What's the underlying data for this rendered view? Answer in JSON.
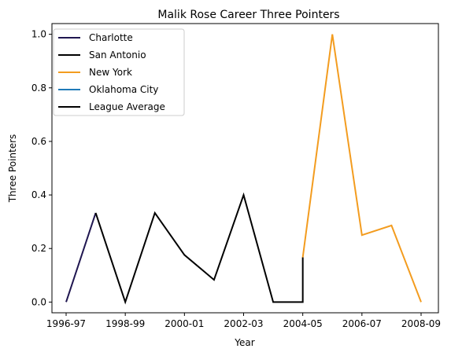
{
  "chart_data": {
    "type": "line",
    "title": "Malik Rose Career Three Pointers",
    "xlabel": "Year",
    "ylabel": "Three Pointers",
    "x_categories": [
      "1996-97",
      "1997-98",
      "1998-99",
      "1999-00",
      "2000-01",
      "2001-02",
      "2002-03",
      "2003-04",
      "2004-05",
      "2005-06",
      "2006-07",
      "2007-08",
      "2008-09"
    ],
    "x_tick_labels": [
      "1996-97",
      "1998-99",
      "2000-01",
      "2002-03",
      "2004-05",
      "2006-07",
      "2008-09"
    ],
    "y_ticks": [
      "0.0",
      "0.2",
      "0.4",
      "0.6",
      "0.8",
      "1.0"
    ],
    "ylim": [
      -0.04,
      1.04
    ],
    "legend_placement": "upper-left",
    "series": [
      {
        "name": "Charlotte",
        "color": "#1f1650",
        "points": [
          [
            "1996-97",
            0.0
          ],
          [
            "1997-98",
            0.333
          ]
        ]
      },
      {
        "name": "San Antonio",
        "color": "#000000",
        "points": [
          [
            "1997-98",
            0.333
          ],
          [
            "1998-99",
            0.0
          ],
          [
            "1999-00",
            0.333
          ],
          [
            "2000-01",
            0.176
          ],
          [
            "2001-02",
            0.083
          ],
          [
            "2002-03",
            0.4
          ],
          [
            "2003-04",
            0.0
          ],
          [
            "2004-05",
            0.0
          ],
          [
            "2004-05",
            0.167
          ]
        ]
      },
      {
        "name": "New York",
        "color": "#f39c1f",
        "points": [
          [
            "2004-05",
            0.167
          ],
          [
            "2005-06",
            1.0
          ],
          [
            "2006-07",
            0.25
          ],
          [
            "2007-08",
            0.286
          ],
          [
            "2008-09",
            0.0
          ]
        ]
      },
      {
        "name": "Oklahoma City",
        "color": "#1f7ab8",
        "points": []
      },
      {
        "name": "League Average",
        "color": "#000000",
        "points": []
      }
    ]
  }
}
